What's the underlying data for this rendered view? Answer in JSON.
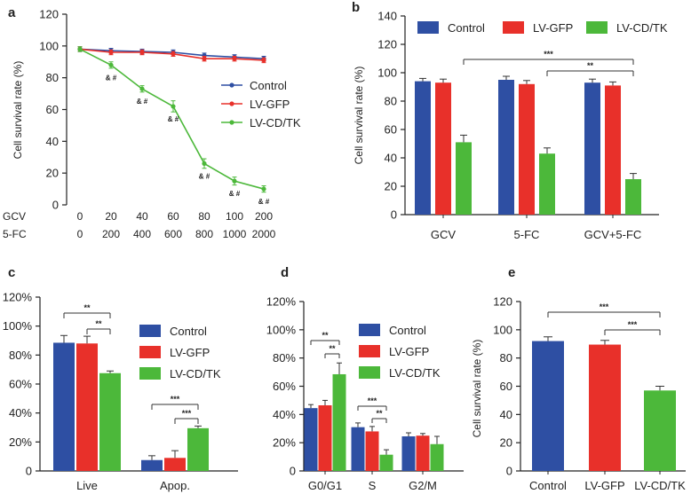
{
  "colors": {
    "control": "#2e4fa3",
    "lvgfp": "#e8302a",
    "lvcdtk": "#4cb83a"
  },
  "chart_data": [
    {
      "panel": "a",
      "type": "line",
      "ylabel": "Cell survival rate (%)",
      "ylim": [
        0,
        120
      ],
      "yticks": [
        "0",
        "20",
        "40",
        "60",
        "80",
        "100",
        "120"
      ],
      "row_labels": [
        "GCV",
        "5-FC"
      ],
      "categories": [
        {
          "gcv": "0",
          "fc": "0"
        },
        {
          "gcv": "20",
          "fc": "200"
        },
        {
          "gcv": "40",
          "fc": "400"
        },
        {
          "gcv": "60",
          "fc": "600"
        },
        {
          "gcv": "80",
          "fc": "800"
        },
        {
          "gcv": "100",
          "fc": "1000"
        },
        {
          "gcv": "200",
          "fc": "2000"
        }
      ],
      "series": [
        {
          "name": "Control",
          "color": "control",
          "values": [
            98,
            97,
            96.5,
            96,
            94,
            93,
            92
          ],
          "errors": [
            1.5,
            1.5,
            1.5,
            1.5,
            1.5,
            1.5,
            1.5
          ]
        },
        {
          "name": "LV-GFP",
          "color": "lvgfp",
          "values": [
            98,
            96,
            96,
            95,
            92,
            92,
            91
          ],
          "errors": [
            1.5,
            1.5,
            1.5,
            1.5,
            1.5,
            1.5,
            1.5
          ]
        },
        {
          "name": "LV-CD/TK",
          "color": "lvcdtk",
          "values": [
            98,
            88,
            73,
            62,
            26,
            15,
            10
          ],
          "errors": [
            1.5,
            2,
            2,
            3.5,
            3,
            2.5,
            2
          ]
        }
      ],
      "annotations": [
        "& #",
        "& #",
        "& #",
        "& #",
        "& #",
        "& #"
      ],
      "legend_position": "right"
    },
    {
      "panel": "b",
      "type": "bar",
      "ylabel": "Cell survival rate (%)",
      "ylim": [
        0,
        140
      ],
      "yticks": [
        "0",
        "20",
        "40",
        "60",
        "80",
        "100",
        "120",
        "140"
      ],
      "categories": [
        "GCV",
        "5-FC",
        "GCV+5-FC"
      ],
      "series": [
        {
          "name": "Control",
          "color": "control",
          "values": [
            94,
            95,
            93
          ],
          "errors": [
            2,
            2.5,
            2.5
          ]
        },
        {
          "name": "LV-GFP",
          "color": "lvgfp",
          "values": [
            93,
            92,
            91
          ],
          "errors": [
            2.5,
            2.5,
            2.5
          ]
        },
        {
          "name": "LV-CD/TK",
          "color": "lvcdtk",
          "values": [
            51,
            43,
            25
          ],
          "errors": [
            5,
            4,
            4
          ]
        }
      ],
      "significance": [
        {
          "label": "***",
          "from": "GCV / LV-CD/TK",
          "to": "GCV+5-FC / LV-CD/TK"
        },
        {
          "label": "**",
          "from": "5-FC / LV-CD/TK",
          "to": "GCV+5-FC / LV-CD/TK"
        }
      ],
      "legend_position": "top"
    },
    {
      "panel": "c",
      "type": "bar",
      "ylabel": "",
      "ylim": [
        0,
        120
      ],
      "yticks": [
        "0",
        "20%",
        "40%",
        "60%",
        "80%",
        "100%",
        "120%"
      ],
      "categories": [
        "Live",
        "Apop."
      ],
      "series": [
        {
          "name": "Control",
          "color": "control",
          "values": [
            88.5,
            7.5
          ],
          "errors": [
            5,
            3
          ]
        },
        {
          "name": "LV-GFP",
          "color": "lvgfp",
          "values": [
            88,
            9
          ],
          "errors": [
            5,
            5
          ]
        },
        {
          "name": "LV-CD/TK",
          "color": "lvcdtk",
          "values": [
            67.5,
            29.5
          ],
          "errors": [
            1.5,
            1.5
          ]
        }
      ],
      "significance": [
        {
          "label": "**",
          "category": "Live",
          "pair": "Control vs LV-CD/TK"
        },
        {
          "label": "**",
          "category": "Live",
          "pair": "LV-GFP vs LV-CD/TK"
        },
        {
          "label": "***",
          "category": "Apop.",
          "pair": "Control vs LV-CD/TK"
        },
        {
          "label": "***",
          "category": "Apop.",
          "pair": "LV-GFP vs LV-CD/TK"
        }
      ],
      "legend_position": "right"
    },
    {
      "panel": "d",
      "type": "bar",
      "ylabel": "",
      "ylim": [
        0,
        120
      ],
      "yticks": [
        "0",
        "20%",
        "40%",
        "60%",
        "80%",
        "100%",
        "120%"
      ],
      "categories": [
        "G0/G1",
        "S",
        "G2/M"
      ],
      "series": [
        {
          "name": "Control",
          "color": "control",
          "values": [
            44.5,
            31,
            24.5
          ],
          "errors": [
            2.5,
            3,
            2.5
          ]
        },
        {
          "name": "LV-GFP",
          "color": "lvgfp",
          "values": [
            46.5,
            28,
            25
          ],
          "errors": [
            3.5,
            3.5,
            1.5
          ]
        },
        {
          "name": "LV-CD/TK",
          "color": "lvcdtk",
          "values": [
            68.5,
            11.5,
            19
          ],
          "errors": [
            8,
            3.5,
            5.5
          ]
        }
      ],
      "significance": [
        {
          "label": "**",
          "category": "G0/G1",
          "pair": "Control vs LV-CD/TK"
        },
        {
          "label": "**",
          "category": "G0/G1",
          "pair": "LV-GFP vs LV-CD/TK"
        },
        {
          "label": "***",
          "category": "S",
          "pair": "Control vs LV-CD/TK"
        },
        {
          "label": "**",
          "category": "S",
          "pair": "LV-GFP vs LV-CD/TK"
        }
      ],
      "legend_position": "top-right"
    },
    {
      "panel": "e",
      "type": "bar",
      "ylabel": "Cell survival rate (%)",
      "ylim": [
        0,
        120
      ],
      "yticks": [
        "0",
        "20",
        "40",
        "60",
        "80",
        "100",
        "120"
      ],
      "categories": [
        "Control",
        "LV-GFP",
        "LV-CD/TK"
      ],
      "series": [
        {
          "name": "Cell survival rate",
          "values": [
            92,
            89.5,
            57
          ],
          "errors": [
            3,
            3,
            3
          ],
          "colors": [
            "control",
            "lvgfp",
            "lvcdtk"
          ]
        }
      ],
      "significance": [
        {
          "label": "***",
          "pair": "Control vs LV-CD/TK"
        },
        {
          "label": "***",
          "pair": "LV-GFP vs LV-CD/TK"
        }
      ]
    }
  ]
}
